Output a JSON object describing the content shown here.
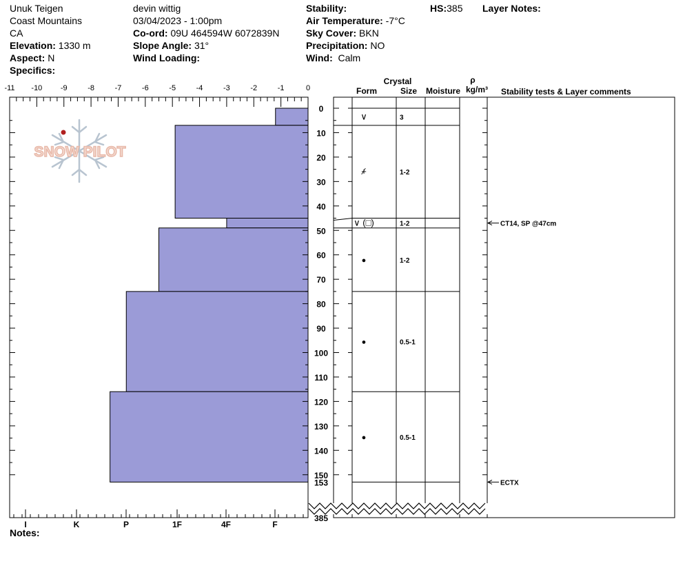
{
  "header": {
    "observer_name": "Unuk Teigen",
    "range": "Coast Mountains",
    "region": "CA",
    "elevation_label": "Elevation:",
    "elevation_value": "1330 m",
    "aspect_label": "Aspect:",
    "aspect_value": "N",
    "specifics_label": "Specifics:",
    "user": "devin wittig",
    "datetime": "03/04/2023 - 1:00pm",
    "coord_label": "Co-ord:",
    "coord_value": "09U 464594W 6072839N",
    "slope_label": "Slope Angle:",
    "slope_value": "31°",
    "wind_loading_label": "Wind Loading:",
    "stability_label": "Stability:",
    "air_temp_label": "Air Temperature:",
    "air_temp_value": "-7°C",
    "sky_label": "Sky Cover:",
    "sky_value": "BKN",
    "precip_label": "Precipitation:",
    "precip_value": "NO",
    "wind_label": "Wind:",
    "wind_value": "Calm",
    "hs_label": "HS:",
    "hs_value": "385",
    "layer_notes_label": "Layer Notes:"
  },
  "logo_text": "SNOW PILOT",
  "notes_label": "Notes:",
  "colors": {
    "hardness_fill": "#9b9bd7",
    "logo": "#e8b8a8",
    "flake": "#b8c4d0",
    "dot": "#b02020"
  },
  "chart_data": {
    "type": "bar",
    "temperature_axis": {
      "range": [
        -11,
        0
      ],
      "ticks": [
        "-11",
        "-10",
        "-9",
        "-8",
        "-7",
        "-6",
        "-5",
        "-4",
        "-3",
        "-2",
        "-1",
        "0"
      ]
    },
    "hardness_axis": {
      "ticks": [
        "I",
        "K",
        "P",
        "1F",
        "4F",
        "F"
      ]
    },
    "depth_axis": {
      "range": [
        0,
        153
      ],
      "ticks": [
        "0",
        "10",
        "20",
        "30",
        "40",
        "50",
        "60",
        "70",
        "80",
        "90",
        "100",
        "110",
        "120",
        "130",
        "140",
        "150"
      ],
      "bottom_label": "153",
      "total_label": "385"
    },
    "column_headers": {
      "crystal": "Crystal",
      "form": "Form",
      "size": "Size",
      "moisture": "Moisture",
      "rho": "ρ",
      "density_unit": "kg/m³",
      "stability": "Stability tests & Layer comments"
    },
    "layers": [
      {
        "top": 0,
        "bottom": 7,
        "hardness": 1.2,
        "form": "∨",
        "size": "3"
      },
      {
        "top": 7,
        "bottom": 45,
        "hardness": 4.9,
        "form": "+",
        "form2": "⁄",
        "size": "1-2",
        "size_pos": 26
      },
      {
        "top": 45,
        "bottom": 49,
        "hardness": 3.0,
        "form": "∨ (□)",
        "size": "1-2"
      },
      {
        "top": 49,
        "bottom": 75,
        "hardness": 5.5,
        "form": "●",
        "size": "1-2"
      },
      {
        "top": 75,
        "bottom": 116,
        "hardness": 6.7,
        "form": "●",
        "size": "0.5-1"
      },
      {
        "top": 116,
        "bottom": 153,
        "hardness": 7.3,
        "form": "●",
        "size": "0.5-1"
      }
    ],
    "tests": [
      {
        "depth": 47,
        "label": "CT14, SP @47cm"
      },
      {
        "depth": 153,
        "label": "ECTX"
      }
    ]
  }
}
